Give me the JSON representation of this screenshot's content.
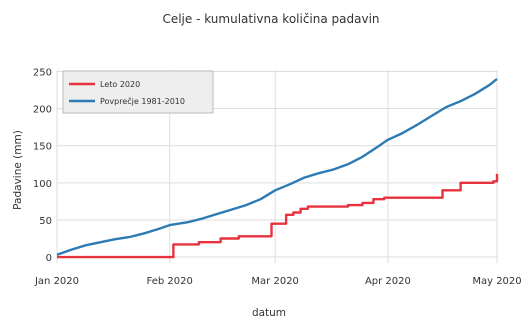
{
  "chart_data": {
    "type": "line",
    "title": "Celje - kumulativna količina padavin",
    "xlabel": "datum",
    "ylabel": "Padavine (mm)",
    "ylim": [
      -8,
      252
    ],
    "xlim": [
      "2020-01-01",
      "2020-05-01"
    ],
    "x_ticks": [
      {
        "date": "2020-01-01",
        "label": "Jan 2020"
      },
      {
        "date": "2020-02-01",
        "label": "Feb 2020"
      },
      {
        "date": "2020-03-01",
        "label": "Mar 2020"
      },
      {
        "date": "2020-04-01",
        "label": "Apr 2020"
      },
      {
        "date": "2020-05-01",
        "label": "May 2020"
      }
    ],
    "y_ticks": [
      0,
      50,
      100,
      150,
      200,
      250
    ],
    "grid": true,
    "legend": {
      "placement": "top-left"
    },
    "series": [
      {
        "name": "Leto 2020",
        "color": "#e8333f",
        "shape": "step",
        "points": [
          [
            "2020-01-01",
            0
          ],
          [
            "2020-02-01",
            0
          ],
          [
            "2020-02-02",
            17
          ],
          [
            "2020-02-08",
            17
          ],
          [
            "2020-02-09",
            20
          ],
          [
            "2020-02-14",
            20
          ],
          [
            "2020-02-15",
            25
          ],
          [
            "2020-02-19",
            25
          ],
          [
            "2020-02-20",
            28
          ],
          [
            "2020-02-28",
            28
          ],
          [
            "2020-02-29",
            45
          ],
          [
            "2020-03-03",
            45
          ],
          [
            "2020-03-04",
            57
          ],
          [
            "2020-03-06",
            60
          ],
          [
            "2020-03-08",
            65
          ],
          [
            "2020-03-10",
            68
          ],
          [
            "2020-03-20",
            68
          ],
          [
            "2020-03-21",
            70
          ],
          [
            "2020-03-24",
            70
          ],
          [
            "2020-03-25",
            73
          ],
          [
            "2020-03-27",
            73
          ],
          [
            "2020-03-28",
            78
          ],
          [
            "2020-03-31",
            80
          ],
          [
            "2020-04-15",
            80
          ],
          [
            "2020-04-16",
            90
          ],
          [
            "2020-04-20",
            90
          ],
          [
            "2020-04-21",
            100
          ],
          [
            "2020-04-30",
            102
          ],
          [
            "2020-05-01",
            112
          ]
        ]
      },
      {
        "name": "Povprečje 1981-2010",
        "color": "#2e7bb4",
        "shape": "linear",
        "points": [
          [
            "2020-01-01",
            3
          ],
          [
            "2020-01-05",
            10
          ],
          [
            "2020-01-09",
            16
          ],
          [
            "2020-01-13",
            20
          ],
          [
            "2020-01-17",
            24
          ],
          [
            "2020-01-21",
            27
          ],
          [
            "2020-01-25",
            32
          ],
          [
            "2020-01-29",
            38
          ],
          [
            "2020-02-01",
            43
          ],
          [
            "2020-02-06",
            47
          ],
          [
            "2020-02-10",
            52
          ],
          [
            "2020-02-14",
            58
          ],
          [
            "2020-02-18",
            64
          ],
          [
            "2020-02-22",
            70
          ],
          [
            "2020-02-26",
            78
          ],
          [
            "2020-03-01",
            90
          ],
          [
            "2020-03-05",
            98
          ],
          [
            "2020-03-09",
            107
          ],
          [
            "2020-03-13",
            113
          ],
          [
            "2020-03-17",
            118
          ],
          [
            "2020-03-21",
            125
          ],
          [
            "2020-03-25",
            135
          ],
          [
            "2020-03-29",
            148
          ],
          [
            "2020-04-01",
            158
          ],
          [
            "2020-04-05",
            167
          ],
          [
            "2020-04-09",
            178
          ],
          [
            "2020-04-13",
            190
          ],
          [
            "2020-04-17",
            202
          ],
          [
            "2020-04-21",
            210
          ],
          [
            "2020-04-25",
            220
          ],
          [
            "2020-04-29",
            232
          ],
          [
            "2020-05-01",
            240
          ]
        ]
      }
    ]
  }
}
